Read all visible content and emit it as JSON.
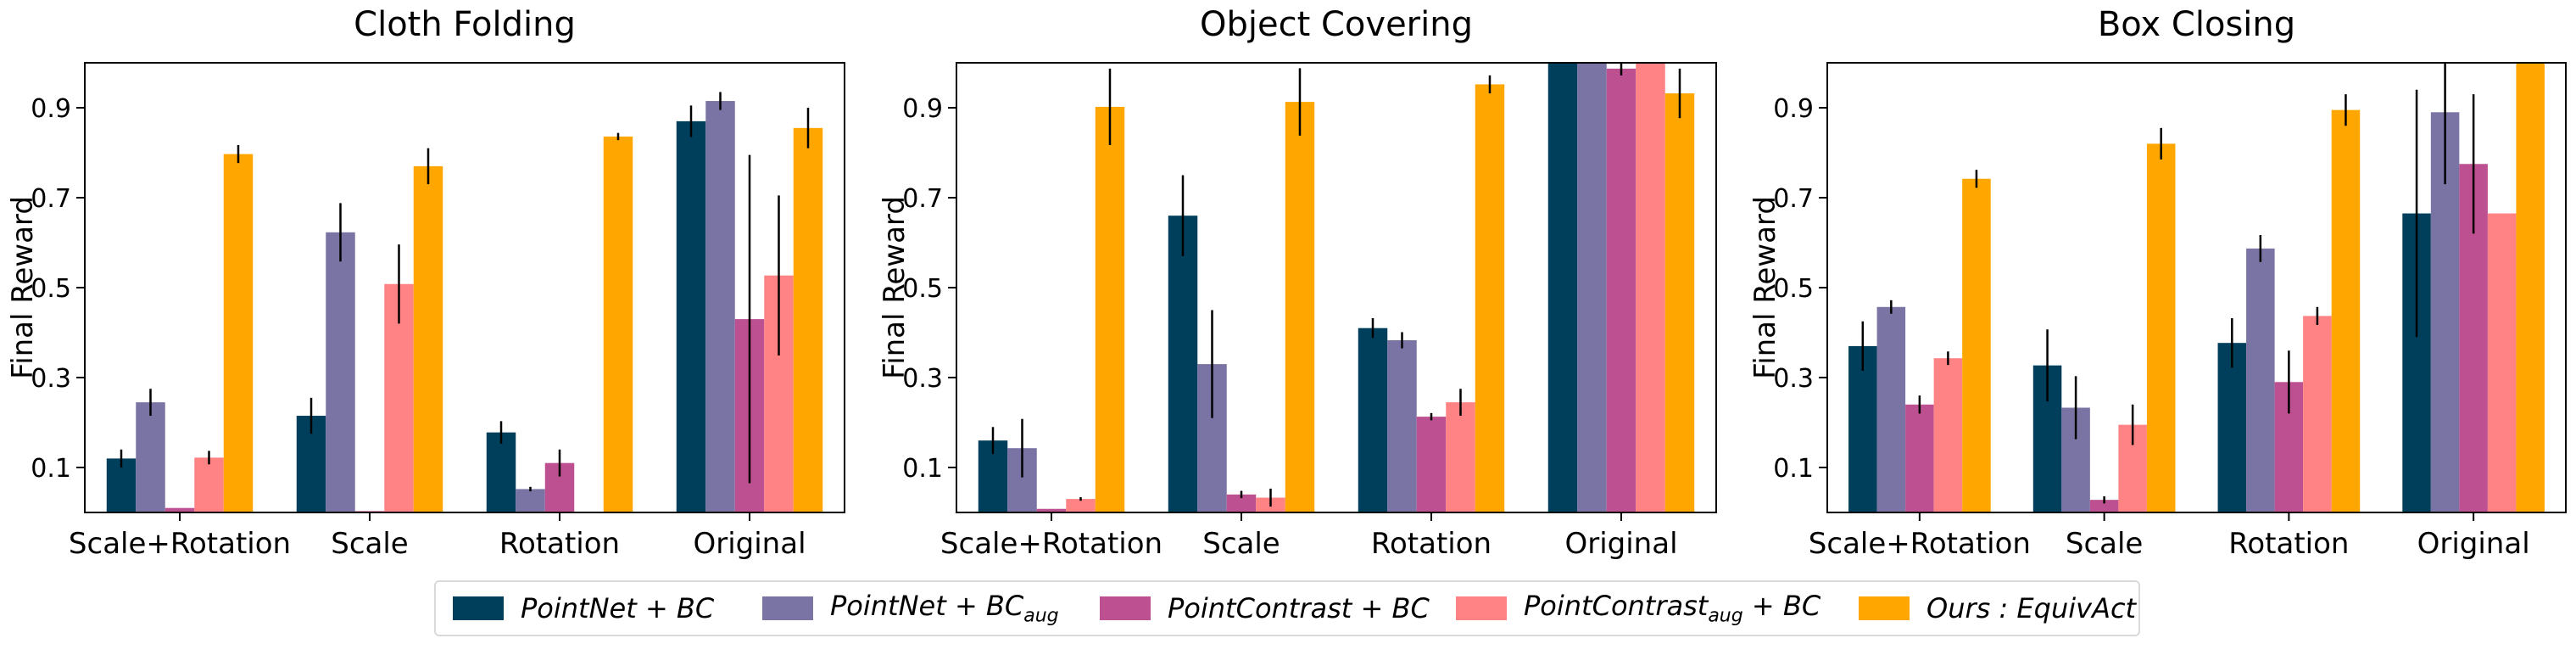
{
  "chart_data": [
    {
      "type": "bar",
      "title": "Cloth Folding",
      "ylabel": "Final Reward",
      "xlabel": "",
      "categories": [
        "Scale+Rotation",
        "Scale",
        "Rotation",
        "Original"
      ],
      "yticks": [
        "0.1",
        "0.3",
        "0.5",
        "0.7",
        "0.9"
      ],
      "ylim": [
        0.0,
        1.0
      ],
      "series": [
        {
          "values": [
            0.12,
            0.215,
            0.178,
            0.87
          ],
          "err": [
            0.02,
            0.04,
            0.025,
            0.035
          ]
        },
        {
          "values": [
            0.245,
            0.623,
            0.052,
            0.915
          ],
          "err": [
            0.03,
            0.065,
            0.005,
            0.02
          ]
        },
        {
          "values": [
            0.01,
            0.003,
            0.11,
            0.43
          ],
          "err": [
            0.0,
            0.0,
            0.03,
            0.365
          ]
        },
        {
          "values": [
            0.122,
            0.508,
            0.0,
            0.527
          ],
          "err": [
            0.015,
            0.088,
            0.0,
            0.178
          ]
        },
        {
          "values": [
            0.797,
            0.77,
            0.836,
            0.855
          ],
          "err": [
            0.02,
            0.04,
            0.008,
            0.045
          ]
        }
      ]
    },
    {
      "type": "bar",
      "title": "Object Covering",
      "ylabel": "Final Reward",
      "xlabel": "",
      "categories": [
        "Scale+Rotation",
        "Scale",
        "Rotation",
        "Original"
      ],
      "yticks": [
        "0.1",
        "0.3",
        "0.5",
        "0.7",
        "0.9"
      ],
      "ylim": [
        0.0,
        1.0
      ],
      "series": [
        {
          "values": [
            0.16,
            0.66,
            0.41,
            1.0
          ],
          "err": [
            0.03,
            0.09,
            0.022,
            0.0
          ]
        },
        {
          "values": [
            0.143,
            0.33,
            0.383,
            1.0
          ],
          "err": [
            0.065,
            0.12,
            0.018,
            0.0
          ]
        },
        {
          "values": [
            0.008,
            0.04,
            0.213,
            0.987
          ],
          "err": [
            0.0,
            0.008,
            0.008,
            0.015
          ]
        },
        {
          "values": [
            0.03,
            0.033,
            0.245,
            1.0
          ],
          "err": [
            0.004,
            0.02,
            0.03,
            0.0
          ]
        },
        {
          "values": [
            0.902,
            0.913,
            0.952,
            0.932
          ],
          "err": [
            0.085,
            0.075,
            0.02,
            0.055
          ]
        }
      ]
    },
    {
      "type": "bar",
      "title": "Box Closing",
      "ylabel": "Final Reward",
      "xlabel": "",
      "categories": [
        "Scale+Rotation",
        "Scale",
        "Rotation",
        "Original"
      ],
      "yticks": [
        "0.1",
        "0.3",
        "0.5",
        "0.7",
        "0.9"
      ],
      "ylim": [
        0.0,
        1.0
      ],
      "series": [
        {
          "values": [
            0.37,
            0.327,
            0.377,
            0.665
          ],
          "err": [
            0.055,
            0.08,
            0.055,
            0.275
          ]
        },
        {
          "values": [
            0.457,
            0.233,
            0.587,
            0.89
          ],
          "err": [
            0.015,
            0.07,
            0.03,
            0.16
          ]
        },
        {
          "values": [
            0.24,
            0.028,
            0.29,
            0.775
          ],
          "err": [
            0.02,
            0.008,
            0.07,
            0.155
          ]
        },
        {
          "values": [
            0.343,
            0.195,
            0.437,
            0.665
          ],
          "err": [
            0.015,
            0.045,
            0.02,
            0.0
          ]
        },
        {
          "values": [
            0.742,
            0.82,
            0.895,
            1.0
          ],
          "err": [
            0.02,
            0.035,
            0.035,
            0.0
          ]
        }
      ]
    }
  ],
  "legend": {
    "placement": "bottom-center",
    "items": [
      {
        "label": "PointNet + BC",
        "sub": "",
        "color": "#003f5c"
      },
      {
        "label": "PointNet + BC",
        "sub": "aug",
        "color": "#7a74a5"
      },
      {
        "label": "PointContrast + BC",
        "sub": "",
        "color": "#bc5090"
      },
      {
        "label": "PointContrast",
        "sub": "aug",
        "suffix": " + BC",
        "color": "#ff8384"
      },
      {
        "label": "Ours : EquivAct",
        "sub": "",
        "color": "#ffa600"
      }
    ]
  }
}
